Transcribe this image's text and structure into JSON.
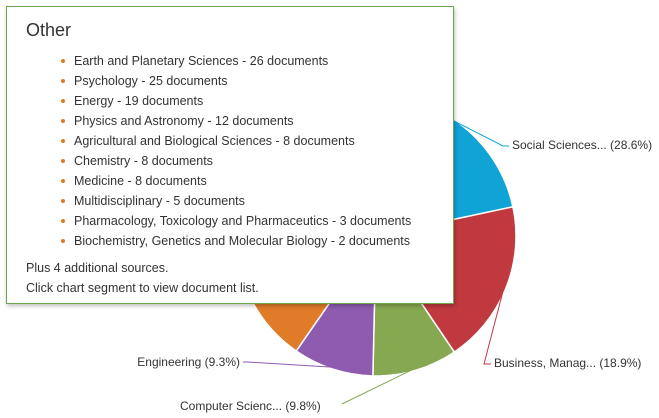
{
  "chart_data": {
    "type": "pie",
    "slices": [
      {
        "label": "Social Sciences... (28.6%)",
        "value": 28.6,
        "color": "#0fa3d6"
      },
      {
        "label": "Business, Manag... (18.9%)",
        "value": 18.9,
        "color": "#c0393f"
      },
      {
        "label": "Computer Scienc... (9.8%)",
        "value": 9.8,
        "color": "#86a851"
      },
      {
        "label": "Engineering (9.3%)",
        "value": 9.3,
        "color": "#8e5bb0"
      },
      {
        "label": "Other",
        "value": 33.4,
        "color": "#e07b28"
      }
    ]
  },
  "tooltip": {
    "title": "Other",
    "items": [
      "Earth and Planetary Sciences - 26 documents",
      "Psychology - 25 documents",
      "Energy - 19 documents",
      "Physics and Astronomy - 12 documents",
      "Agricultural and Biological Sciences - 8 documents",
      "Chemistry - 8 documents",
      "Medicine - 8 documents",
      "Multidisciplinary - 5 documents",
      "Pharmacology, Toxicology and Pharmaceutics - 3 documents",
      "Biochemistry, Genetics and Molecular Biology - 2 documents"
    ],
    "footer_sources": "Plus 4 additional sources.",
    "footer_hint": "Click chart segment to view document list.",
    "border_color": "#6aa84f",
    "bullet_color": "#e07b28"
  }
}
